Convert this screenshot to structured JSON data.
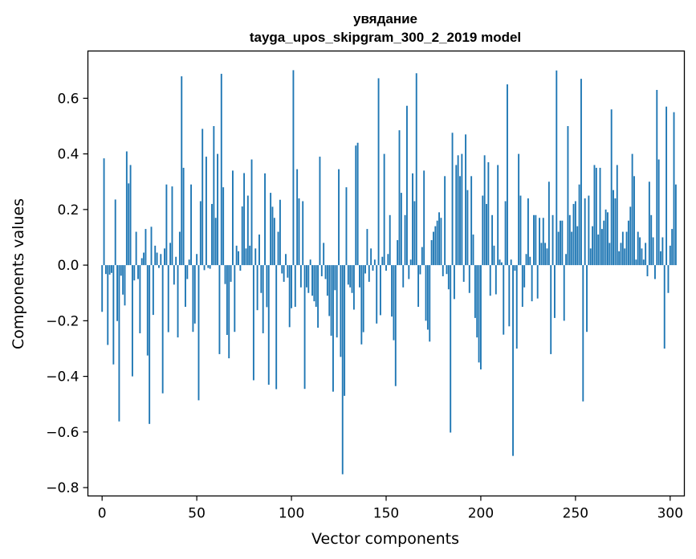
{
  "chart_data": {
    "type": "bar",
    "title": "увядание",
    "subtitle": "tayga_upos_skipgram_300_2_2019 model",
    "xlabel": "Vector components",
    "ylabel": "Components values",
    "xlim": [
      -7.5,
      307.5
    ],
    "ylim": [
      -0.83,
      0.77
    ],
    "x_ticks": [
      0,
      50,
      100,
      150,
      200,
      250,
      300
    ],
    "x_tick_labels": [
      "0",
      "50",
      "100",
      "150",
      "200",
      "250",
      "300"
    ],
    "y_ticks": [
      -0.8,
      -0.6,
      -0.4,
      -0.2,
      0.0,
      0.2,
      0.4,
      0.6
    ],
    "y_tick_labels": [
      "−0.8",
      "−0.6",
      "−0.4",
      "−0.2",
      "0.0",
      "0.2",
      "0.4",
      "0.6"
    ],
    "bar_color": "#1f77b4",
    "grid": false,
    "legend": "none",
    "values": [
      -0.168,
      0.384,
      -0.032,
      -0.287,
      -0.034,
      -0.028,
      -0.357,
      0.236,
      -0.201,
      -0.562,
      -0.038,
      -0.106,
      -0.145,
      0.409,
      0.294,
      0.36,
      -0.4,
      -0.055,
      0.12,
      -0.05,
      -0.245,
      0.025,
      0.045,
      0.13,
      -0.325,
      -0.571,
      0.138,
      -0.179,
      0.07,
      0.045,
      -0.01,
      0.04,
      -0.461,
      0.06,
      0.29,
      -0.241,
      0.08,
      0.283,
      -0.07,
      0.03,
      -0.26,
      0.12,
      0.679,
      0.35,
      -0.15,
      -0.05,
      0.02,
      0.29,
      -0.24,
      -0.21,
      0.04,
      -0.486,
      0.23,
      0.49,
      -0.018,
      0.39,
      -0.01,
      -0.013,
      0.22,
      0.5,
      0.17,
      0.4,
      -0.32,
      0.688,
      0.28,
      -0.068,
      -0.251,
      -0.335,
      -0.06,
      0.34,
      -0.24,
      0.07,
      0.05,
      -0.02,
      0.211,
      0.331,
      0.06,
      0.25,
      0.07,
      0.38,
      -0.414,
      0.06,
      -0.162,
      0.11,
      -0.1,
      -0.245,
      0.33,
      -0.151,
      -0.43,
      0.26,
      0.21,
      0.17,
      -0.446,
      0.12,
      0.235,
      -0.03,
      -0.06,
      0.04,
      -0.045,
      -0.223,
      -0.155,
      0.701,
      -0.15,
      0.345,
      0.24,
      -0.08,
      0.23,
      -0.445,
      -0.08,
      -0.1,
      0.02,
      -0.11,
      -0.13,
      -0.15,
      -0.225,
      0.39,
      -0.04,
      0.08,
      -0.05,
      -0.11,
      -0.183,
      -0.254,
      -0.455,
      -0.09,
      -0.26,
      0.345,
      -0.33,
      -0.752,
      -0.47,
      0.28,
      -0.07,
      -0.08,
      -0.1,
      -0.16,
      0.43,
      0.44,
      -0.08,
      -0.285,
      -0.241,
      -0.03,
      0.13,
      -0.06,
      0.06,
      -0.02,
      0.02,
      -0.21,
      0.672,
      -0.18,
      0.03,
      0.4,
      -0.02,
      0.04,
      0.18,
      -0.185,
      -0.27,
      -0.435,
      0.09,
      0.485,
      0.26,
      -0.08,
      0.18,
      0.573,
      -0.05,
      0.02,
      0.33,
      0.23,
      0.69,
      -0.15,
      -0.033,
      0.065,
      0.34,
      -0.2,
      -0.232,
      -0.275,
      0.09,
      0.12,
      0.14,
      0.16,
      0.19,
      0.17,
      -0.04,
      0.32,
      -0.032,
      -0.087,
      -0.602,
      0.476,
      -0.122,
      0.36,
      0.395,
      0.32,
      0.4,
      -0.06,
      0.47,
      0.27,
      -0.1,
      0.32,
      0.11,
      -0.19,
      -0.26,
      -0.35,
      -0.375,
      0.25,
      0.395,
      0.22,
      0.37,
      -0.11,
      0.18,
      0.07,
      -0.105,
      0.36,
      0.02,
      0.01,
      -0.25,
      0.23,
      0.65,
      -0.22,
      0.02,
      -0.686,
      -0.02,
      -0.3,
      0.4,
      0.25,
      -0.15,
      -0.08,
      0.04,
      0.24,
      0.03,
      -0.13,
      0.18,
      0.18,
      -0.12,
      0.17,
      0.08,
      0.17,
      0.08,
      0.06,
      0.3,
      -0.32,
      0.18,
      -0.19,
      0.7,
      0.12,
      0.16,
      0.16,
      -0.2,
      0.04,
      0.5,
      0.18,
      0.12,
      0.22,
      0.23,
      0.14,
      0.29,
      0.67,
      -0.49,
      0.24,
      -0.24,
      0.25,
      0.06,
      0.14,
      0.36,
      0.35,
      0.11,
      0.35,
      0.13,
      0.16,
      0.2,
      0.19,
      0.08,
      0.56,
      0.27,
      0.24,
      0.36,
      0.05,
      0.08,
      0.12,
      0.06,
      0.12,
      0.16,
      0.21,
      0.4,
      0.32,
      0.02,
      0.12,
      0.1,
      0.06,
      0.02,
      0.08,
      -0.04,
      0.3,
      0.18,
      0.1,
      -0.05,
      0.63,
      0.38,
      0.05,
      0.1,
      -0.3,
      0.57,
      -0.1,
      0.07,
      0.13,
      0.55,
      0.29
    ]
  }
}
